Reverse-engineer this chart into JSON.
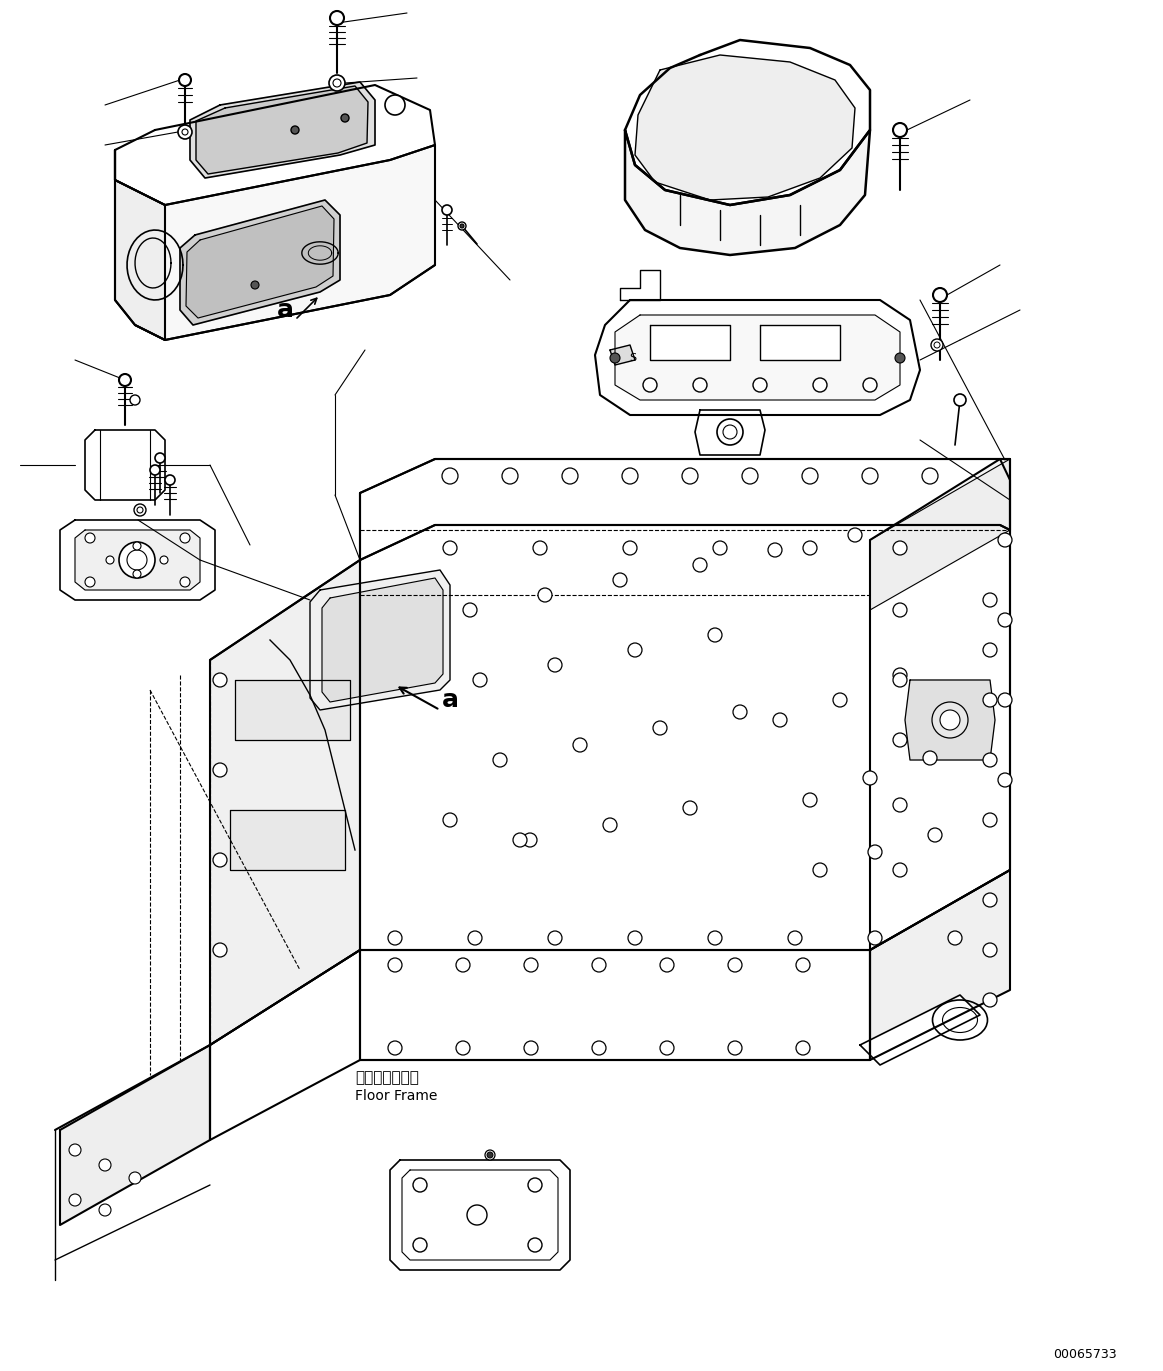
{
  "figure_width": 11.63,
  "figure_height": 13.71,
  "dpi": 100,
  "background_color": "#ffffff",
  "line_color": "#000000",
  "part_number": "00065733",
  "floor_frame_label_jp": "フロアフレーム",
  "floor_frame_label_en": "Floor Frame",
  "label_a_upper": "a",
  "label_a_lower": "a"
}
